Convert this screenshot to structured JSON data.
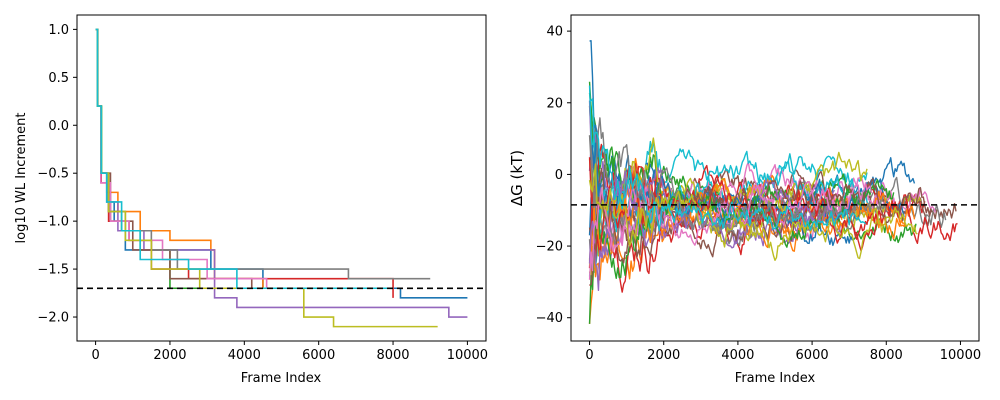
{
  "chart_data": [
    {
      "type": "line",
      "title": "",
      "xlabel": "Frame Index",
      "ylabel": "log10 WL Increment",
      "xlim": [
        -500,
        10500
      ],
      "ylim": [
        -2.25,
        1.15
      ],
      "xticks": [
        0,
        2000,
        4000,
        6000,
        8000,
        10000
      ],
      "yticks": [
        1.0,
        0.5,
        0.0,
        -0.5,
        -1.0,
        -1.5,
        -2.0
      ],
      "ytick_labels": [
        "1.0",
        "0.5",
        "0.0",
        "−0.5",
        "−1.0",
        "−1.5",
        "−2.0"
      ],
      "reference_line": {
        "y": -1.7,
        "style": "dashed",
        "color": "#000000"
      },
      "grid": false,
      "step_series": [
        {
          "color": "#1f77b4",
          "stops": [
            [
              0,
              1.0
            ],
            [
              50,
              0.2
            ],
            [
              150,
              -0.5
            ],
            [
              300,
              -0.8
            ],
            [
              500,
              -1.0
            ],
            [
              800,
              -1.3
            ],
            [
              3100,
              -1.5
            ],
            [
              4500,
              -1.7
            ],
            [
              8200,
              -1.8
            ],
            [
              10000,
              -1.8
            ]
          ]
        },
        {
          "color": "#ff7f0e",
          "stops": [
            [
              0,
              1.0
            ],
            [
              50,
              0.2
            ],
            [
              150,
              -0.5
            ],
            [
              300,
              -0.7
            ],
            [
              600,
              -0.9
            ],
            [
              1200,
              -1.1
            ],
            [
              2000,
              -1.2
            ],
            [
              3100,
              -1.3
            ],
            [
              3200,
              -1.6
            ],
            [
              4500,
              -1.7
            ],
            [
              8000,
              -1.7
            ]
          ]
        },
        {
          "color": "#2ca02c",
          "stops": [
            [
              0,
              1.0
            ],
            [
              60,
              0.2
            ],
            [
              160,
              -0.5
            ],
            [
              350,
              -0.9
            ],
            [
              700,
              -1.1
            ],
            [
              1200,
              -1.3
            ],
            [
              2000,
              -1.7
            ],
            [
              8000,
              -1.7
            ]
          ]
        },
        {
          "color": "#d62728",
          "stops": [
            [
              0,
              1.0
            ],
            [
              50,
              0.2
            ],
            [
              150,
              -0.6
            ],
            [
              350,
              -1.0
            ],
            [
              900,
              -1.2
            ],
            [
              1500,
              -1.5
            ],
            [
              2500,
              -1.6
            ],
            [
              7500,
              -1.6
            ],
            [
              8000,
              -1.8
            ]
          ]
        },
        {
          "color": "#9467bd",
          "stops": [
            [
              0,
              1.0
            ],
            [
              50,
              0.2
            ],
            [
              150,
              -0.5
            ],
            [
              300,
              -0.8
            ],
            [
              600,
              -1.1
            ],
            [
              1300,
              -1.3
            ],
            [
              3200,
              -1.8
            ],
            [
              3800,
              -1.9
            ],
            [
              9500,
              -2.0
            ],
            [
              10000,
              -2.0
            ]
          ]
        },
        {
          "color": "#8c564b",
          "stops": [
            [
              0,
              1.0
            ],
            [
              50,
              0.2
            ],
            [
              150,
              -0.5
            ],
            [
              400,
              -1.0
            ],
            [
              1000,
              -1.3
            ],
            [
              2000,
              -1.6
            ],
            [
              4200,
              -1.7
            ],
            [
              7000,
              -1.7
            ]
          ]
        },
        {
          "color": "#e377c2",
          "stops": [
            [
              0,
              1.0
            ],
            [
              50,
              0.2
            ],
            [
              140,
              -0.6
            ],
            [
              400,
              -1.0
            ],
            [
              900,
              -1.2
            ],
            [
              1800,
              -1.4
            ],
            [
              3000,
              -1.6
            ],
            [
              4600,
              -1.7
            ],
            [
              8000,
              -1.7
            ]
          ]
        },
        {
          "color": "#7f7f7f",
          "stops": [
            [
              0,
              1.0
            ],
            [
              50,
              0.2
            ],
            [
              150,
              -0.5
            ],
            [
              350,
              -0.9
            ],
            [
              800,
              -1.1
            ],
            [
              1500,
              -1.3
            ],
            [
              2200,
              -1.5
            ],
            [
              6800,
              -1.6
            ],
            [
              9000,
              -1.6
            ]
          ]
        },
        {
          "color": "#bcbd22",
          "stops": [
            [
              0,
              1.0
            ],
            [
              50,
              0.2
            ],
            [
              150,
              -0.5
            ],
            [
              350,
              -0.9
            ],
            [
              800,
              -1.2
            ],
            [
              1500,
              -1.5
            ],
            [
              2800,
              -1.7
            ],
            [
              5600,
              -2.0
            ],
            [
              6400,
              -2.1
            ],
            [
              9200,
              -2.1
            ]
          ]
        },
        {
          "color": "#17becf",
          "stops": [
            [
              0,
              1.0
            ],
            [
              50,
              0.2
            ],
            [
              150,
              -0.5
            ],
            [
              300,
              -0.8
            ],
            [
              700,
              -1.1
            ],
            [
              1200,
              -1.4
            ],
            [
              2500,
              -1.5
            ],
            [
              3800,
              -1.7
            ],
            [
              8000,
              -1.7
            ]
          ]
        }
      ]
    },
    {
      "type": "line",
      "title": "",
      "xlabel": "Frame Index",
      "ylabel": "ΔG (kT)",
      "xlim": [
        -500,
        10500
      ],
      "ylim": [
        -46.5,
        44.5
      ],
      "xticks": [
        0,
        2000,
        4000,
        6000,
        8000,
        10000
      ],
      "yticks": [
        40,
        20,
        0,
        -20,
        -40
      ],
      "ytick_labels": [
        "40",
        "20",
        "0",
        "−20",
        "−40"
      ],
      "reference_line": {
        "y": -8.5,
        "style": "dashed",
        "color": "#000000"
      },
      "grid": false,
      "series_colors": [
        "#1f77b4",
        "#ff7f0e",
        "#2ca02c",
        "#d62728",
        "#9467bd",
        "#8c564b",
        "#e377c2",
        "#7f7f7f",
        "#bcbd22",
        "#17becf"
      ],
      "noisy_trajectories": {
        "count": 30,
        "x_start": 0,
        "x_end_range": [
          6500,
          10000
        ],
        "y_start_range": [
          -42,
          40
        ],
        "settle_mean": -8.5,
        "envelope": "spread shrinks from about ±40 near frame 0 to about ±10 beyond frame 2000"
      }
    }
  ]
}
